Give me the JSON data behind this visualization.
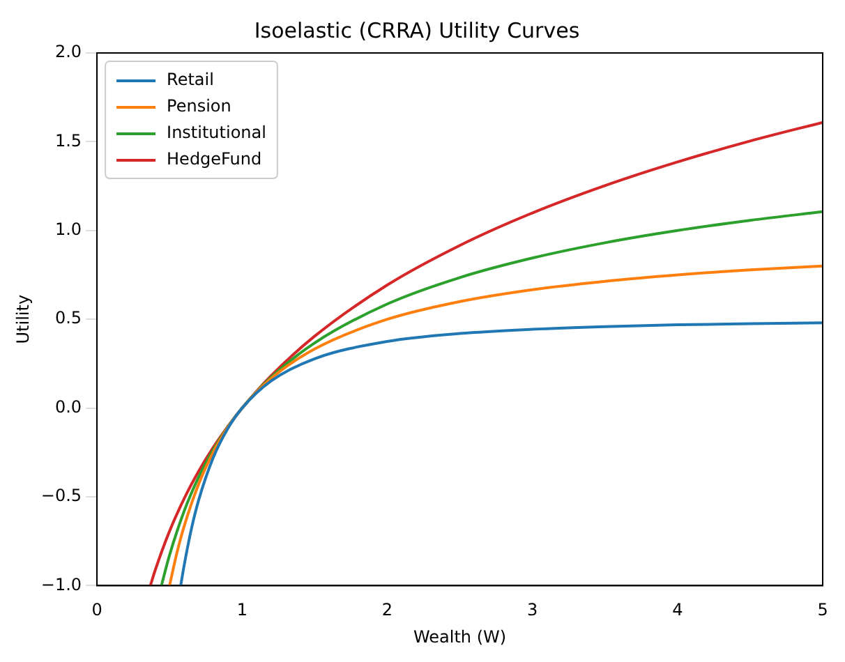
{
  "chart_data": {
    "type": "line",
    "title": "Isoelastic (CRRA) Utility Curves",
    "xlabel": "Wealth (W)",
    "ylabel": "Utility",
    "xlim": [
      0,
      5
    ],
    "ylim": [
      -1,
      2
    ],
    "xticks": [
      0,
      1,
      2,
      3,
      4,
      5
    ],
    "yticks": [
      {
        "value": -1,
        "label": "−1.0"
      },
      {
        "value": -0.5,
        "label": "−0.5"
      },
      {
        "value": 0,
        "label": "0.0"
      },
      {
        "value": 0.5,
        "label": "0.5"
      },
      {
        "value": 1,
        "label": "1.0"
      },
      {
        "value": 1.5,
        "label": "1.5"
      },
      {
        "value": 2,
        "label": "2.0"
      }
    ],
    "grid": false,
    "legend": "top left",
    "marker": "none",
    "line_style": "solid",
    "series": [
      {
        "name": "Retail",
        "color": "#1f77b4",
        "x": [
          0.577,
          0.6,
          0.65,
          0.7,
          0.8,
          0.9,
          1,
          1.2,
          1.5,
          2,
          2.5,
          3,
          3.5,
          4,
          4.5,
          5
        ],
        "values": [
          -1,
          -0.889,
          -0.683,
          -0.52,
          -0.281,
          -0.117,
          0,
          0.153,
          0.278,
          0.375,
          0.42,
          0.444,
          0.459,
          0.469,
          0.475,
          0.48
        ]
      },
      {
        "name": "Pension",
        "color": "#ff7f0e",
        "x": [
          0.5,
          0.55,
          0.6,
          0.7,
          0.8,
          0.9,
          1,
          1.2,
          1.5,
          2,
          2.5,
          3,
          3.5,
          4,
          4.5,
          5
        ],
        "values": [
          -1,
          -0.818,
          -0.667,
          -0.429,
          -0.25,
          -0.111,
          0,
          0.167,
          0.333,
          0.5,
          0.6,
          0.667,
          0.714,
          0.75,
          0.778,
          0.8
        ]
      },
      {
        "name": "Institutional",
        "color": "#2ca02c",
        "x": [
          0.444,
          0.5,
          0.6,
          0.7,
          0.8,
          0.9,
          1,
          1.2,
          1.5,
          2,
          2.5,
          3,
          3.5,
          4,
          4.5,
          5
        ],
        "values": [
          -1,
          -0.828,
          -0.582,
          -0.39,
          -0.236,
          -0.108,
          0,
          0.174,
          0.367,
          0.586,
          0.735,
          0.845,
          0.931,
          1,
          1.057,
          1.106
        ]
      },
      {
        "name": "HedgeFund",
        "color": "#d62728",
        "x": [
          0.368,
          0.4,
          0.5,
          0.6,
          0.7,
          0.8,
          0.9,
          1,
          1.2,
          1.5,
          2,
          2.5,
          3,
          3.5,
          4,
          4.5,
          5
        ],
        "values": [
          -1,
          -0.916,
          -0.693,
          -0.511,
          -0.357,
          -0.223,
          -0.105,
          0,
          0.182,
          0.405,
          0.693,
          0.916,
          1.099,
          1.253,
          1.386,
          1.504,
          1.609
        ]
      }
    ]
  }
}
